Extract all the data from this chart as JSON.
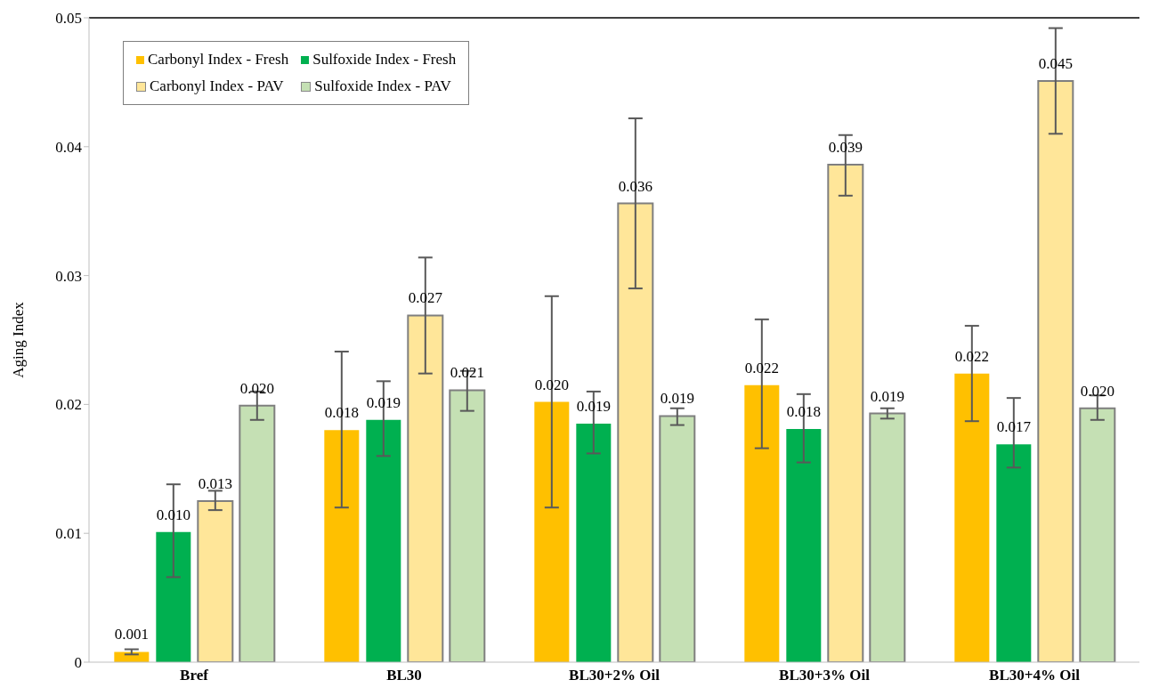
{
  "chart_data": {
    "type": "bar",
    "ylabel": "Aging Index",
    "categories": [
      "Bref",
      "BL30",
      "BL30+2% Oil",
      "BL30+3% Oil",
      "BL30+4% Oil"
    ],
    "series": [
      {
        "name": "Carbonyl Index - Fresh",
        "color": "#ffc000",
        "values": [
          0.0008,
          0.018,
          0.0202,
          0.0215,
          0.0224
        ],
        "errors": [
          [
            0.0006,
            0.001
          ],
          [
            0.012,
            0.0241
          ],
          [
            0.012,
            0.0284
          ],
          [
            0.0166,
            0.0266
          ],
          [
            0.0187,
            0.0261
          ]
        ],
        "value_labels": [
          "0.001",
          "0.018",
          "0.020",
          "0.022",
          "0.022"
        ]
      },
      {
        "name": "Sulfoxide Index - Fresh",
        "color": "#00b050",
        "values": [
          0.0101,
          0.0188,
          0.0185,
          0.0181,
          0.0169
        ],
        "errors": [
          [
            0.0066,
            0.0138
          ],
          [
            0.016,
            0.0218
          ],
          [
            0.0162,
            0.021
          ],
          [
            0.0155,
            0.0208
          ],
          [
            0.0151,
            0.0205
          ]
        ],
        "value_labels": [
          "0.010",
          "0.019",
          "0.019",
          "0.018",
          "0.017"
        ]
      },
      {
        "name": "Carbonyl Index - PAV",
        "color": "#ffe699",
        "values": [
          0.0125,
          0.0269,
          0.0356,
          0.0386,
          0.0451
        ],
        "errors": [
          [
            0.0118,
            0.0133
          ],
          [
            0.0224,
            0.0314
          ],
          [
            0.029,
            0.0422
          ],
          [
            0.0362,
            0.0409
          ],
          [
            0.041,
            0.0492
          ]
        ],
        "value_labels": [
          "0.013",
          "0.027",
          "0.036",
          "0.039",
          "0.045"
        ]
      },
      {
        "name": "Sulfoxide Index - PAV",
        "color": "#c5e0b4",
        "values": [
          0.0199,
          0.0211,
          0.0191,
          0.0193,
          0.0197
        ],
        "errors": [
          [
            0.0188,
            0.021
          ],
          [
            0.0195,
            0.0226
          ],
          [
            0.0184,
            0.0197
          ],
          [
            0.0189,
            0.0197
          ],
          [
            0.0188,
            0.0207
          ]
        ],
        "value_labels": [
          "0.020",
          "0.021",
          "0.019",
          "0.019",
          "0.020"
        ]
      }
    ],
    "ylim": [
      0,
      0.05
    ],
    "yticks": [
      0,
      0.01,
      0.02,
      0.03,
      0.04,
      0.05
    ],
    "grid": false,
    "legend": "top left"
  }
}
